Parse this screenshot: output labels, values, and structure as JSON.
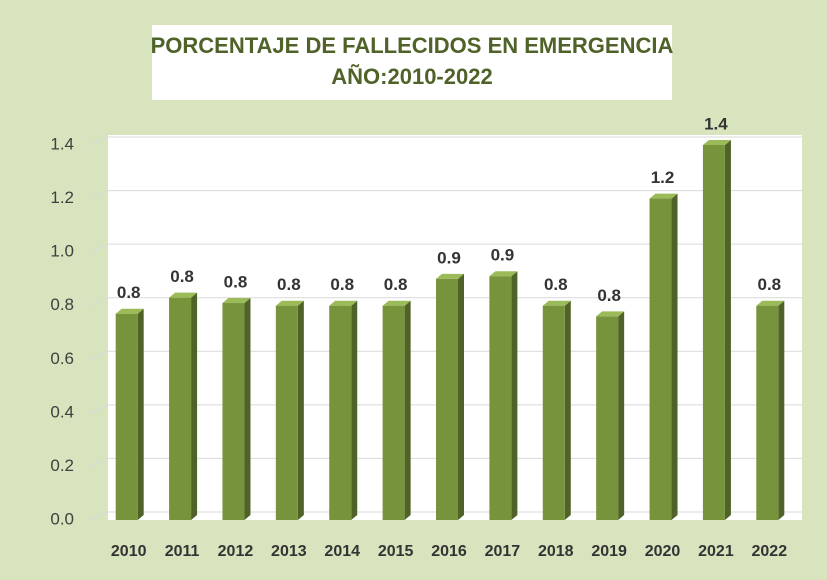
{
  "chart_data": {
    "type": "bar",
    "title": "PORCENTAJE DE FALLECIDOS EN EMERGENCIA",
    "subtitle": "AÑO:2010-2022",
    "categories": [
      "2010",
      "2011",
      "2012",
      "2013",
      "2014",
      "2015",
      "2016",
      "2017",
      "2018",
      "2019",
      "2020",
      "2021",
      "2022"
    ],
    "values": [
      0.77,
      0.83,
      0.81,
      0.8,
      0.8,
      0.8,
      0.9,
      0.91,
      0.8,
      0.76,
      1.2,
      1.4,
      0.8
    ],
    "value_labels": [
      "0.8",
      "0.8",
      "0.8",
      "0.8",
      "0.8",
      "0.8",
      "0.9",
      "0.9",
      "0.8",
      "0.8",
      "1.2",
      "1.4",
      "0.8"
    ],
    "color": "#77933c",
    "ylim": [
      0,
      1.4
    ],
    "yticks": [
      {
        "value": 0,
        "label": "0.0"
      },
      0.2,
      0.4,
      0.6,
      0.8,
      {
        "value": 1,
        "label": "1.0"
      },
      1.2,
      1.4
    ],
    "grid": true
  }
}
